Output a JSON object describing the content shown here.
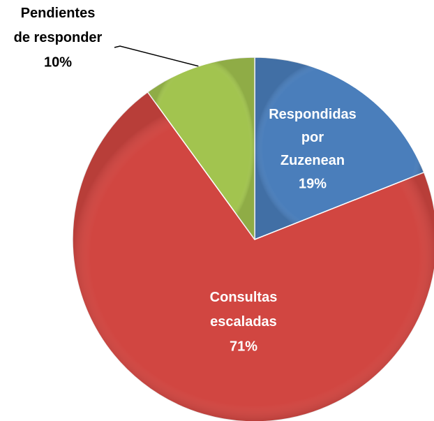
{
  "chart_data": {
    "type": "pie",
    "categories": [
      "Respondidas por Zuzenean",
      "Consultas escaladas",
      "Pendientes de responder"
    ],
    "values": [
      19,
      71,
      10
    ],
    "value_labels": [
      "19%",
      "71%",
      "10%"
    ],
    "colors": [
      "#4a7ebb",
      "#d14641",
      "#a2c44f"
    ]
  }
}
